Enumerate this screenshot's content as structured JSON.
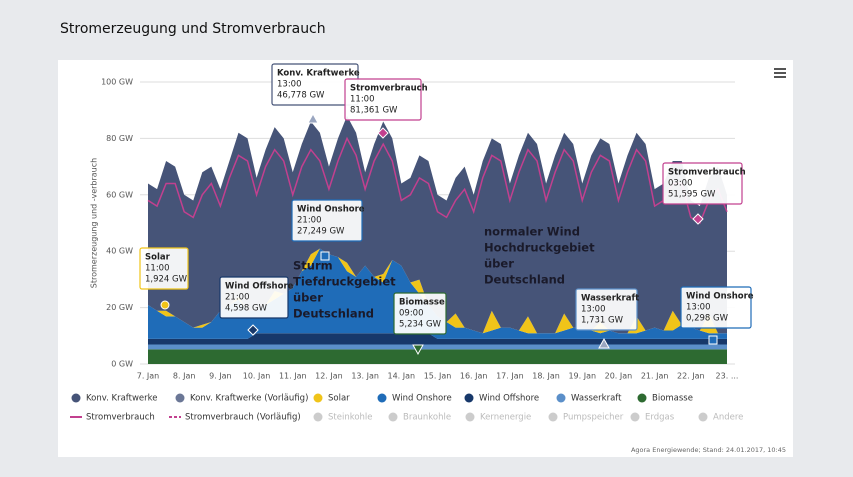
{
  "chart_data": {
    "type": "area",
    "title": "Stromerzeugung und Stromverbrauch",
    "y_label": "Stromerzeugung und -verbrauch",
    "source": "Agora Energiewende; Stand: 24.01.2017, 10:45",
    "categories": [
      "7. Jan",
      null,
      null,
      null,
      "8. Jan",
      null,
      null,
      null,
      "9. Jan",
      null,
      null,
      null,
      "10. Jan",
      null,
      null,
      null,
      "11. Jan",
      null,
      null,
      null,
      "12. Jan",
      null,
      null,
      null,
      "13. Jan",
      null,
      null,
      null,
      "14. Jan",
      null,
      null,
      null,
      "15. Jan",
      null,
      null,
      null,
      "16. Jan",
      null,
      null,
      null,
      "17. Jan",
      null,
      null,
      null,
      "18. Jan",
      null,
      null,
      null,
      "19. Jan",
      null,
      null,
      null,
      "20. Jan",
      null,
      null,
      null,
      "21. Jan",
      null,
      null,
      null,
      "22. Jan",
      null,
      null,
      null,
      "23. ..."
    ],
    "ylim": [
      0,
      100
    ],
    "yticks": [
      {
        "value": 0,
        "label": "0 GW"
      },
      {
        "value": 20,
        "label": "20 GW"
      },
      {
        "value": 40,
        "label": "40 GW"
      },
      {
        "value": 60,
        "label": "60 GW"
      },
      {
        "value": 80,
        "label": "80 GW"
      },
      {
        "value": 100,
        "label": "100 GW"
      }
    ],
    "grid": true,
    "series": [
      {
        "name": "Konv. Kraftwerke",
        "color": "#465478",
        "kind": "area",
        "values": [
          43.1,
          43.1,
          53.1,
          53.1,
          45.1,
          45.1,
          54.1,
          55.1,
          43.1,
          51.1,
          58.1,
          61.1,
          47.1,
          55.1,
          58.1,
          55.1,
          41.1,
          45.1,
          47.1,
          41.1,
          31.1,
          42.1,
          52.1,
          51.1,
          33.1,
          47.1,
          54.1,
          43.1,
          29.1,
          37.1,
          44.1,
          51.1,
          43.1,
          43.1,
          48.1,
          57.1,
          48.1,
          61.1,
          61.1,
          65.1,
          51.1,
          62.1,
          65.1,
          67.1,
          53.1,
          63.1,
          64.1,
          65.1,
          51.1,
          62.1,
          65.1,
          66.1,
          53.1,
          63.1,
          65.1,
          66.1,
          49.1,
          52.1,
          53.1,
          58.1,
          45.1,
          44.1,
          48.1,
          59.1,
          49.1
        ]
      },
      {
        "name": "Solar",
        "color": "#f0c419",
        "kind": "area",
        "values": [
          0,
          0,
          2,
          0,
          0,
          0,
          1,
          0,
          0,
          0,
          1,
          0,
          0,
          0,
          3,
          0,
          0,
          0,
          4,
          0,
          0,
          0,
          3,
          0,
          0,
          0,
          3,
          0,
          0,
          0,
          5,
          0,
          0,
          0,
          5,
          0,
          0,
          0,
          7,
          0,
          0,
          0,
          6,
          0,
          0,
          0,
          6,
          0,
          0,
          0,
          4,
          0,
          0,
          0,
          6,
          0,
          0,
          0,
          7,
          0,
          0,
          0,
          7,
          0,
          0
        ]
      },
      {
        "name": "Wind Onshore",
        "color": "#1f6cb8",
        "kind": "area",
        "values": [
          12,
          10,
          8,
          8,
          6,
          4,
          4,
          6,
          10,
          12,
          14,
          10,
          8,
          10,
          12,
          14,
          16,
          22,
          24,
          30,
          28,
          27,
          22,
          20,
          24,
          20,
          18,
          26,
          24,
          18,
          14,
          10,
          8,
          6,
          4,
          4,
          3,
          2,
          3,
          4,
          4,
          3,
          2,
          2,
          2,
          2,
          3,
          4,
          4,
          3,
          2,
          3,
          2,
          2,
          2,
          3,
          4,
          3,
          3,
          5,
          4,
          3,
          2,
          2,
          2
        ]
      },
      {
        "name": "Wind Offshore",
        "color": "#17386a",
        "kind": "area",
        "values": [
          2,
          2,
          2,
          2,
          2,
          2,
          2,
          2,
          2,
          2,
          2,
          2,
          4,
          4,
          4,
          4,
          4,
          4,
          4,
          4,
          4,
          4,
          4,
          4,
          4,
          4,
          4,
          4,
          4,
          4,
          4,
          4,
          2,
          2,
          2,
          2,
          2,
          2,
          2,
          2,
          2,
          2,
          2,
          2,
          2,
          2,
          2,
          2,
          2,
          2,
          2,
          2,
          2,
          2,
          2,
          2,
          2,
          2,
          2,
          2,
          2,
          2,
          2,
          2,
          2
        ]
      },
      {
        "name": "Wasserkraft",
        "color": "#5b8fc9",
        "kind": "area",
        "values": [
          1.7,
          1.7,
          1.7,
          1.7,
          1.7,
          1.7,
          1.7,
          1.7,
          1.7,
          1.7,
          1.7,
          1.7,
          1.7,
          1.7,
          1.7,
          1.7,
          1.7,
          1.7,
          1.7,
          1.7,
          1.7,
          1.7,
          1.7,
          1.7,
          1.7,
          1.7,
          1.7,
          1.7,
          1.7,
          1.7,
          1.7,
          1.7,
          1.7,
          1.7,
          1.7,
          1.7,
          1.7,
          1.7,
          1.7,
          1.7,
          1.7,
          1.7,
          1.7,
          1.7,
          1.7,
          1.7,
          1.7,
          1.7,
          1.7,
          1.7,
          1.7,
          1.7,
          1.7,
          1.7,
          1.7,
          1.7,
          1.7,
          1.7,
          1.7,
          1.7,
          1.7,
          1.7,
          1.7,
          1.7,
          1.7
        ]
      },
      {
        "name": "Biomasse",
        "color": "#2d6a31",
        "kind": "area",
        "values": [
          5.2,
          5.2,
          5.2,
          5.2,
          5.2,
          5.2,
          5.2,
          5.2,
          5.2,
          5.2,
          5.2,
          5.2,
          5.2,
          5.2,
          5.2,
          5.2,
          5.2,
          5.2,
          5.2,
          5.2,
          5.2,
          5.2,
          5.2,
          5.2,
          5.2,
          5.2,
          5.2,
          5.2,
          5.2,
          5.2,
          5.2,
          5.2,
          5.2,
          5.2,
          5.2,
          5.2,
          5.2,
          5.2,
          5.2,
          5.2,
          5.2,
          5.2,
          5.2,
          5.2,
          5.2,
          5.2,
          5.2,
          5.2,
          5.2,
          5.2,
          5.2,
          5.2,
          5.2,
          5.2,
          5.2,
          5.2,
          5.2,
          5.2,
          5.2,
          5.2,
          5.2,
          5.2,
          5.2,
          5.2,
          5.2
        ]
      },
      {
        "name": "Stromverbrauch",
        "color": "#c2408f",
        "kind": "line",
        "values": [
          58,
          56,
          64,
          64,
          54,
          52,
          60,
          64,
          56,
          66,
          74,
          72,
          60,
          70,
          76,
          72,
          60,
          70,
          76,
          72,
          62,
          72,
          80,
          74,
          62,
          72,
          78,
          72,
          58,
          60,
          66,
          64,
          54,
          52,
          58,
          62,
          54,
          66,
          74,
          72,
          58,
          68,
          76,
          72,
          58,
          68,
          76,
          72,
          58,
          68,
          74,
          72,
          58,
          68,
          76,
          72,
          56,
          58,
          64,
          64,
          52,
          50,
          58,
          62,
          54
        ]
      }
    ],
    "legend_extra": [
      {
        "name": "Konv. Kraftwerke (Vorläufig)",
        "color": "#6b7796",
        "symbol": "dot"
      },
      {
        "name": "Stromverbrauch (Vorläufig)",
        "color": "#c2408f",
        "symbol": "dash"
      },
      {
        "name": "Steinkohle",
        "color": "#cccccc",
        "symbol": "dot",
        "hidden": true
      },
      {
        "name": "Braunkohle",
        "color": "#cccccc",
        "symbol": "dot",
        "hidden": true
      },
      {
        "name": "Kernenergie",
        "color": "#cccccc",
        "symbol": "dot",
        "hidden": true
      },
      {
        "name": "Pumpspeicher",
        "color": "#cccccc",
        "symbol": "dot",
        "hidden": true
      },
      {
        "name": "Erdgas",
        "color": "#cccccc",
        "symbol": "dot",
        "hidden": true
      },
      {
        "name": "Andere",
        "color": "#cccccc",
        "symbol": "dot",
        "hidden": true
      }
    ],
    "annotations": [
      {
        "title": "Konv. Kraftwerke",
        "time": "13:00",
        "value": "46,778 GW"
      },
      {
        "title": "Stromverbrauch",
        "time": "11:00",
        "value": "81,361 GW"
      },
      {
        "title": "Solar",
        "time": "11:00",
        "value": "1,924 GW"
      },
      {
        "title": "Wind Offshore",
        "time": "21:00",
        "value": "4,598 GW"
      },
      {
        "title": "Wind Onshore",
        "time": "21:00",
        "value": "27,249 GW"
      },
      {
        "title": "Biomasse",
        "time": "09:00",
        "value": "5,234 GW"
      },
      {
        "title": "Wasserkraft",
        "time": "13:00",
        "value": "1,731 GW"
      },
      {
        "title": "Wind Onshore",
        "time": "13:00",
        "value": "0,298 GW"
      },
      {
        "title": "Stromverbrauch",
        "time": "03:00",
        "value": "51,595 GW"
      }
    ],
    "notes": [
      {
        "lines": [
          "Sturm",
          "Tiefdruckgebiet",
          "über",
          "Deutschland"
        ]
      },
      {
        "lines": [
          "normaler Wind",
          "Hochdruckgebiet",
          "über",
          "Deutschland"
        ]
      }
    ]
  }
}
